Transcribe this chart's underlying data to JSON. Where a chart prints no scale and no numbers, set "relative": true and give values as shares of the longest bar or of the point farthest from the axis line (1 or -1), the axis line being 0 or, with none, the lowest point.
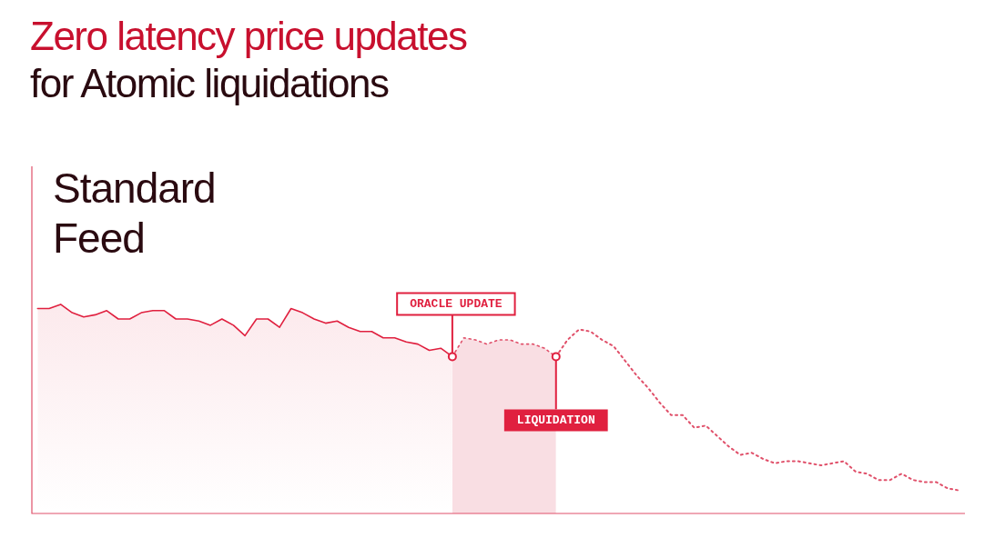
{
  "chart_data": {
    "type": "line",
    "title": "Zero latency price updates",
    "subtitle": "for Atomic liquidations",
    "relative": true,
    "legend": false,
    "categories": [
      null,
      null,
      null,
      null,
      null,
      null,
      null,
      null,
      null,
      null,
      null,
      null,
      null,
      null,
      null,
      null,
      null,
      null,
      null,
      null,
      null,
      null,
      null,
      null,
      null,
      null,
      null,
      null,
      null,
      null,
      null,
      null,
      null,
      null,
      null,
      null,
      null,
      null,
      null,
      null,
      null,
      null,
      null,
      null,
      null,
      null,
      null,
      null,
      null,
      null,
      null,
      null,
      null,
      null,
      null,
      null,
      null,
      null,
      null,
      null,
      null,
      null,
      null,
      null,
      null,
      null,
      null,
      null,
      null,
      null,
      null,
      null,
      null,
      null,
      null,
      null,
      null,
      null,
      null,
      null,
      null
    ],
    "series": [
      {
        "type": "area",
        "color": "#e0203f",
        "line_style": "solid",
        "values": [
          0.98,
          0.98,
          1,
          0.96,
          0.94,
          0.95,
          0.97,
          0.93,
          0.93,
          0.96,
          0.97,
          0.97,
          0.93,
          0.93,
          0.92,
          0.9,
          0.93,
          0.9,
          0.85,
          0.93,
          0.93,
          0.89,
          0.98,
          0.96,
          0.93,
          0.91,
          0.92,
          0.89,
          0.87,
          0.87,
          0.84,
          0.84,
          0.82,
          0.81,
          0.78,
          0.79,
          0.75,
          null,
          null,
          null,
          null,
          null,
          null,
          null,
          null,
          null,
          null,
          null,
          null,
          null,
          null,
          null,
          null,
          null,
          null,
          null,
          null,
          null,
          null,
          null,
          null,
          null,
          null,
          null,
          null,
          null,
          null,
          null,
          null,
          null,
          null,
          null,
          null,
          null,
          null,
          null,
          null,
          null,
          null,
          null,
          null
        ]
      },
      {
        "type": "area",
        "color": "#e0506a",
        "line_style": "dotted",
        "values": [
          null,
          null,
          null,
          null,
          null,
          null,
          null,
          null,
          null,
          null,
          null,
          null,
          null,
          null,
          null,
          null,
          null,
          null,
          null,
          null,
          null,
          null,
          null,
          null,
          null,
          null,
          null,
          null,
          null,
          null,
          null,
          null,
          null,
          null,
          null,
          null,
          0.75,
          0.84,
          0.83,
          0.81,
          0.83,
          0.83,
          0.81,
          0.81,
          0.79,
          0.75,
          null,
          null,
          null,
          null,
          null,
          null,
          null,
          null,
          null,
          null,
          null,
          null,
          null,
          null,
          null,
          null,
          null,
          null,
          null,
          null,
          null,
          null,
          null,
          null,
          null,
          null,
          null,
          null,
          null,
          null,
          null,
          null,
          null,
          null,
          null
        ]
      },
      {
        "color": "#e0506a",
        "line_style": "dotted",
        "values": [
          null,
          null,
          null,
          null,
          null,
          null,
          null,
          null,
          null,
          null,
          null,
          null,
          null,
          null,
          null,
          null,
          null,
          null,
          null,
          null,
          null,
          null,
          null,
          null,
          null,
          null,
          null,
          null,
          null,
          null,
          null,
          null,
          null,
          null,
          null,
          null,
          null,
          null,
          null,
          null,
          null,
          null,
          null,
          null,
          null,
          0.75,
          0.83,
          0.88,
          0.87,
          0.83,
          0.8,
          0.73,
          0.66,
          0.6,
          0.53,
          0.47,
          0.47,
          0.41,
          0.42,
          0.37,
          0.32,
          0.28,
          0.29,
          0.26,
          0.24,
          0.25,
          0.25,
          0.24,
          0.23,
          0.24,
          0.25,
          0.2,
          0.19,
          0.16,
          0.16,
          0.19,
          0.16,
          0.15,
          0.15,
          0.12,
          0.11
        ]
      }
    ],
    "annotations": [
      "Standard Feed",
      "ORACLE UPDATE",
      "LIQUIDATION"
    ]
  }
}
